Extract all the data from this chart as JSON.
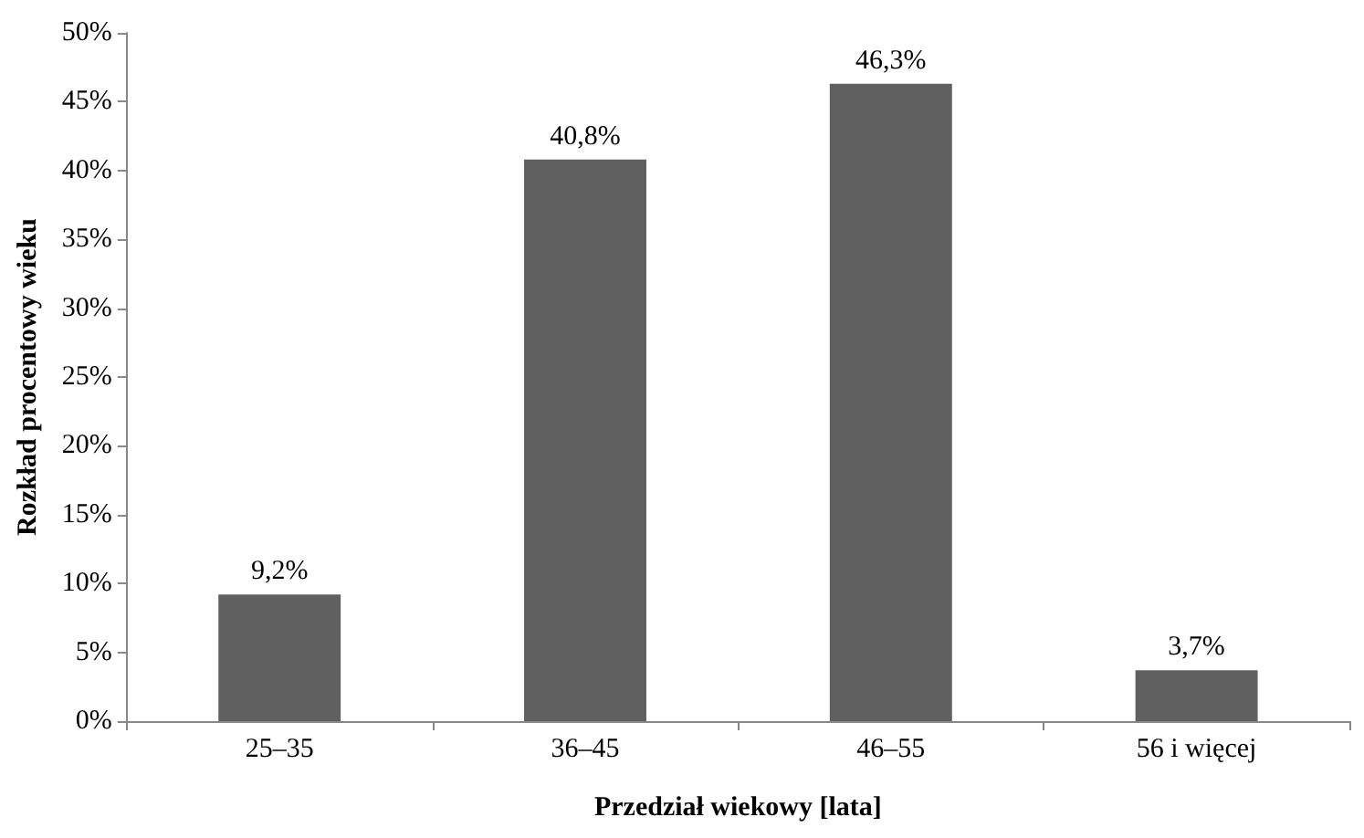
{
  "chart_data": {
    "type": "bar",
    "xlabel": "Przedział wiekowy [lata]",
    "ylabel": "Rozkład procentowy wieku",
    "categories": [
      "25–35",
      "36–45",
      "46–55",
      "56 i więcej"
    ],
    "values": [
      9.2,
      40.8,
      46.3,
      3.7
    ],
    "value_labels": [
      "9,2%",
      "40,8%",
      "46,3%",
      "3,7%"
    ],
    "color": "#606060",
    "ylim": [
      0,
      50
    ],
    "yticks": [
      {
        "value": 0,
        "label": "0%"
      },
      {
        "value": 5,
        "label": "5%"
      },
      {
        "value": 10,
        "label": "10%"
      },
      {
        "value": 15,
        "label": "15%"
      },
      {
        "value": 20,
        "label": "20%"
      },
      {
        "value": 25,
        "label": "25%"
      },
      {
        "value": 30,
        "label": "30%"
      },
      {
        "value": 35,
        "label": "35%"
      },
      {
        "value": 40,
        "label": "40%"
      },
      {
        "value": 45,
        "label": "45%"
      },
      {
        "value": 50,
        "label": "50%"
      }
    ],
    "grid": false
  }
}
